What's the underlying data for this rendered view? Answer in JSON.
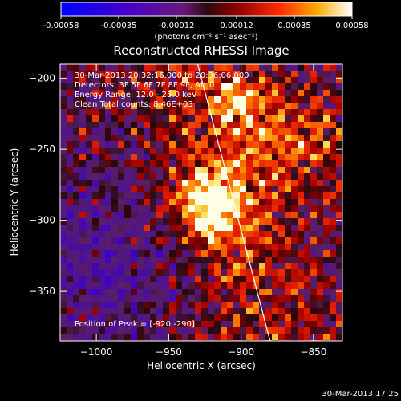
{
  "chart_data": {
    "type": "heatmap",
    "title": "Reconstructed RHESSI Image",
    "xlabel": "Heliocentric X (arcsec)",
    "ylabel": "Heliocentric Y (arcsec)",
    "xlim": [
      -1025,
      -830
    ],
    "ylim": [
      -385,
      -190
    ],
    "x_ticks": [
      -1000,
      -950,
      -900,
      -850
    ],
    "y_ticks": [
      -200,
      -250,
      -300,
      -350
    ],
    "colorbar": {
      "ticks": [
        -0.00058,
        -0.00035,
        -0.00012,
        0.00012,
        0.00035,
        0.00058
      ],
      "tick_labels": [
        "-0.00058",
        "-0.00035",
        "-0.00012",
        "0.00012",
        "0.00035",
        "0.00058"
      ],
      "units_label": "(photons cm⁻² s⁻¹ asec⁻²)"
    },
    "annotations": [
      "30-Mar-2013 20:32:16.000 to 20:36:06.000",
      "Detectors: 3F 5F 6F 7F 8F 9F, Att 0",
      "Energy Range: 12.0 - 25.0 keV",
      "Clean    Total counts: 8.46E+03"
    ],
    "peak_label": "Position of Peak = [-920,-290]",
    "peak": [
      -920,
      -290
    ],
    "limb_line": [
      [
        -930,
        -190
      ],
      [
        -880,
        -385
      ]
    ],
    "footer": "30-Mar-2013 17:25"
  }
}
